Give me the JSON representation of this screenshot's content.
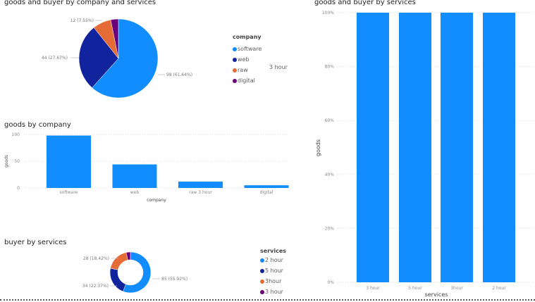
{
  "chart_data": [
    {
      "type": "pie",
      "title": "goods and buyer by company and services",
      "legend_title": "company",
      "legend_position": "right",
      "categories": [
        "software",
        "web",
        "raw 3 hour",
        "digital"
      ],
      "legend_labels": [
        "software",
        "web",
        "raw",
        "digital"
      ],
      "legend_extra": "3 hour",
      "values": [
        98,
        44,
        12,
        5
      ],
      "data_labels": [
        "98 (61.64%)",
        "44 (27.67%)",
        "12 (7.55%)",
        ""
      ],
      "colors": [
        "#118DFF",
        "#12239E",
        "#E66C37",
        "#6B007B"
      ]
    },
    {
      "type": "bar",
      "title": "goods by company",
      "xlabel": "company",
      "ylabel": "goods",
      "categories": [
        "software",
        "web",
        "raw 3 hour",
        "digital"
      ],
      "values": [
        98,
        44,
        12,
        5
      ],
      "ylim": [
        0,
        100
      ],
      "yticks": [
        "0",
        "50",
        "100"
      ],
      "ytick_values": [
        0,
        50,
        100
      ],
      "grid": true,
      "color": "#118DFF"
    },
    {
      "type": "pie",
      "subtype": "donut",
      "title": "buyer by services",
      "legend_title": "services",
      "legend_position": "right",
      "categories": [
        "2 hour",
        "5 hour",
        "3hour",
        "3 hour"
      ],
      "values": [
        85,
        34,
        28,
        5
      ],
      "data_labels": [
        "85 (55.92%)",
        "34 (22.37%)",
        "28 (18.42%)",
        ""
      ],
      "colors": [
        "#118DFF",
        "#12239E",
        "#E66C37",
        "#6B007B"
      ]
    },
    {
      "type": "bar",
      "subtype": "100% stacked",
      "title": "goods and buyer by services",
      "xlabel": "services",
      "ylabel": "goods",
      "categories": [
        "3 hour",
        "5 hour",
        "3hour",
        "2 hour"
      ],
      "values": [
        100,
        100,
        100,
        100
      ],
      "ylim": [
        0,
        100
      ],
      "yticks": [
        "0%",
        "20%",
        "40%",
        "60%",
        "80%",
        "100%"
      ],
      "ytick_values": [
        0,
        20,
        40,
        60,
        80,
        100
      ],
      "grid": true,
      "color": "#118DFF"
    }
  ]
}
